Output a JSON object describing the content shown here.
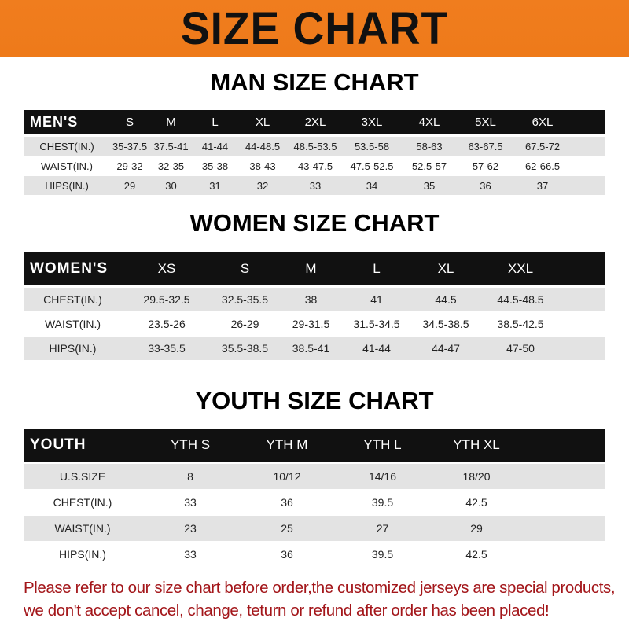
{
  "banner": {
    "title": "SIZE CHART",
    "color": "#f07d1e"
  },
  "men": {
    "title": "MAN SIZE CHART",
    "header": [
      "MEN'S",
      "S",
      "M",
      "L",
      "XL",
      "2XL",
      "3XL",
      "4XL",
      "5XL",
      "6XL"
    ],
    "rows": [
      [
        "CHEST(IN.)",
        "35-37.5",
        "37.5-41",
        "41-44",
        "44-48.5",
        "48.5-53.5",
        "53.5-58",
        "58-63",
        "63-67.5",
        "67.5-72"
      ],
      [
        "WAIST(IN.)",
        "29-32",
        "32-35",
        "35-38",
        "38-43",
        "43-47.5",
        "47.5-52.5",
        "52.5-57",
        "57-62",
        "62-66.5"
      ],
      [
        "HIPS(IN.)",
        "29",
        "30",
        "31",
        "32",
        "33",
        "34",
        "35",
        "36",
        "37"
      ]
    ]
  },
  "women": {
    "title": "WOMEN SIZE CHART",
    "header": [
      "WOMEN'S",
      "XS",
      "S",
      "M",
      "L",
      "XL",
      "XXL"
    ],
    "rows": [
      [
        "CHEST(IN.)",
        "29.5-32.5",
        "32.5-35.5",
        "38",
        "41",
        "44.5",
        "44.5-48.5"
      ],
      [
        "WAIST(IN.)",
        "23.5-26",
        "26-29",
        "29-31.5",
        "31.5-34.5",
        "34.5-38.5",
        "38.5-42.5"
      ],
      [
        "HIPS(IN.)",
        "33-35.5",
        "35.5-38.5",
        "38.5-41",
        "41-44",
        "44-47",
        "47-50"
      ]
    ]
  },
  "youth": {
    "title": "YOUTH SIZE CHART",
    "header": [
      "YOUTH",
      "YTH S",
      "YTH M",
      "YTH L",
      "YTH XL"
    ],
    "rows": [
      [
        "U.S.SIZE",
        "8",
        "10/12",
        "14/16",
        "18/20"
      ],
      [
        "CHEST(IN.)",
        "33",
        "36",
        "39.5",
        "42.5"
      ],
      [
        "WAIST(IN.)",
        "23",
        "25",
        "27",
        "29"
      ],
      [
        "HIPS(IN.)",
        "33",
        "36",
        "39.5",
        "42.5"
      ]
    ]
  },
  "note": {
    "line1": "Please refer to our size chart before order,the customized jerseys are special products,",
    "line2": "we don't accept cancel, change, teturn or refund after order has been placed!",
    "color": "#a3161a"
  }
}
